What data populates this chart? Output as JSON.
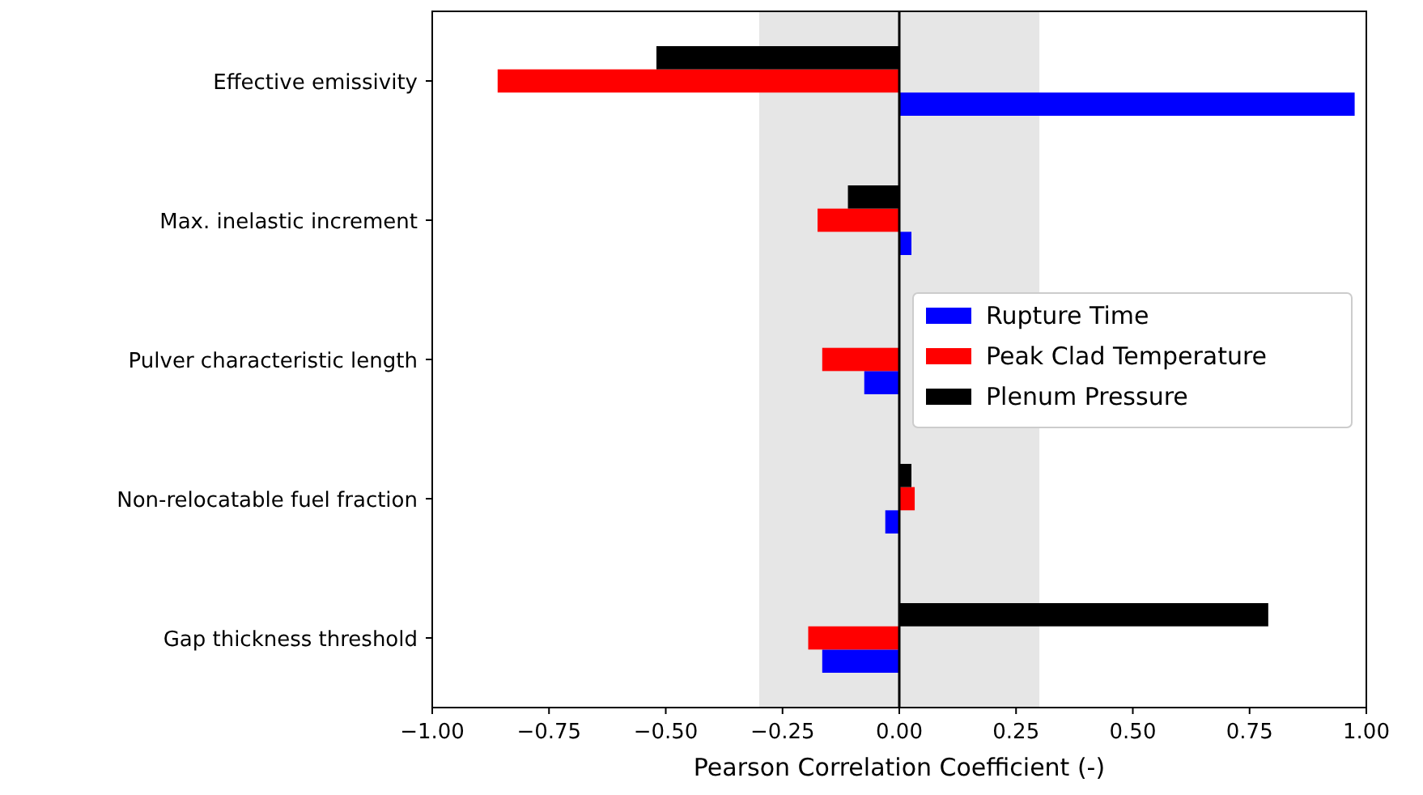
{
  "chart_data": {
    "type": "bar",
    "orientation": "horizontal",
    "xlabel": "Pearson Correlation Coefficient (-)",
    "categories": [
      "Effective emissivity",
      "Max. inelastic increment",
      "Pulver characteristic length",
      "Non-relocatable fuel fraction",
      "Gap thickness threshold"
    ],
    "series": [
      {
        "name": "Rupture Time",
        "color": "#0000ff",
        "values": [
          0.975,
          0.026,
          -0.075,
          -0.03,
          -0.165
        ]
      },
      {
        "name": "Peak Clad Temperature",
        "color": "#ff0000",
        "values": [
          -0.86,
          -0.175,
          -0.165,
          0.033,
          -0.195
        ]
      },
      {
        "name": "Plenum Pressure",
        "color": "#000000",
        "values": [
          -0.52,
          -0.11,
          0,
          0.026,
          0.79
        ]
      }
    ],
    "xlim": [
      -1,
      1
    ],
    "xticks": [
      {
        "value": -1,
        "label": "−1.00"
      },
      {
        "value": -0.75,
        "label": "−0.75"
      },
      {
        "value": -0.5,
        "label": "−0.50"
      },
      {
        "value": -0.25,
        "label": "−0.25"
      },
      {
        "value": 0,
        "label": "0.00"
      },
      {
        "value": 0.25,
        "label": "0.25"
      },
      {
        "value": 0.5,
        "label": "0.50"
      },
      {
        "value": 0.75,
        "label": "0.75"
      },
      {
        "value": 1,
        "label": "1.00"
      }
    ],
    "ref_lines": [
      {
        "axis": "x",
        "value": 0,
        "color": "#000000"
      }
    ],
    "bands": [
      {
        "axis": "x",
        "from": -0.3,
        "to": 0.3,
        "color": "#e6e6e6"
      }
    ],
    "legend": "right",
    "grid": false
  }
}
